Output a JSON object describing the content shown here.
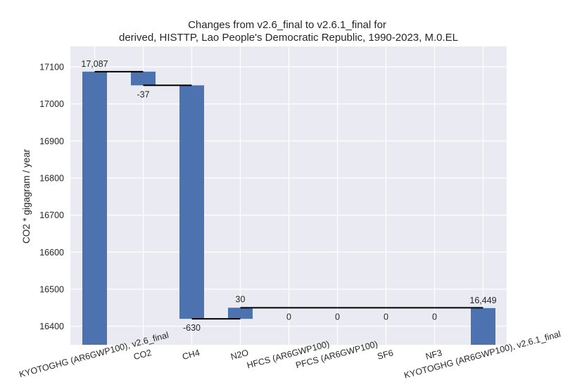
{
  "chart_data": {
    "type": "bar",
    "subtype": "waterfall",
    "title_line1": "Changes from v2.6_final to v2.6.1_final for",
    "title_line2": "derived, HISTTP, Lao People's Democratic Republic, 1990-2023, M.0.EL",
    "ylabel": "CO2 * gigagram / year",
    "xlabel": "",
    "ylim": [
      16350,
      17155
    ],
    "yticks": [
      16400,
      16500,
      16600,
      16700,
      16800,
      16900,
      17000,
      17100
    ],
    "grid": true,
    "categories": [
      "KYOTOGHG (AR6GWP100), v2.6_final",
      "CO2",
      "CH4",
      "N2O",
      "HFCS (AR6GWP100)",
      "PFCS (AR6GWP100)",
      "SF6",
      "NF3",
      "KYOTOGHG (AR6GWP100), v2.6.1_final"
    ],
    "bars": [
      {
        "kind": "total",
        "bottom": 16350,
        "top": 17087,
        "label": "17,087"
      },
      {
        "kind": "delta",
        "bottom": 17050,
        "top": 17087,
        "label": "-37"
      },
      {
        "kind": "delta",
        "bottom": 16420,
        "top": 17050,
        "label": "-630"
      },
      {
        "kind": "delta",
        "bottom": 16420,
        "top": 16450,
        "label": "30"
      },
      {
        "kind": "delta",
        "bottom": 16450,
        "top": 16450,
        "label": "0"
      },
      {
        "kind": "delta",
        "bottom": 16450,
        "top": 16450,
        "label": "0"
      },
      {
        "kind": "delta",
        "bottom": 16450,
        "top": 16450,
        "label": "0"
      },
      {
        "kind": "delta",
        "bottom": 16450,
        "top": 16450,
        "label": "0"
      },
      {
        "kind": "total",
        "bottom": 16350,
        "top": 16449,
        "label": "16,449"
      }
    ],
    "connectors": [
      {
        "from": 0,
        "to": 1,
        "y": 17087
      },
      {
        "from": 1,
        "to": 2,
        "y": 17050
      },
      {
        "from": 2,
        "to": 3,
        "y": 16420
      },
      {
        "from": 3,
        "to": 8,
        "y": 16450
      }
    ],
    "colors": {
      "bar": "#4c72b0",
      "background": "#eaeaf2",
      "grid": "#ffffff",
      "connector": "#000000"
    }
  }
}
